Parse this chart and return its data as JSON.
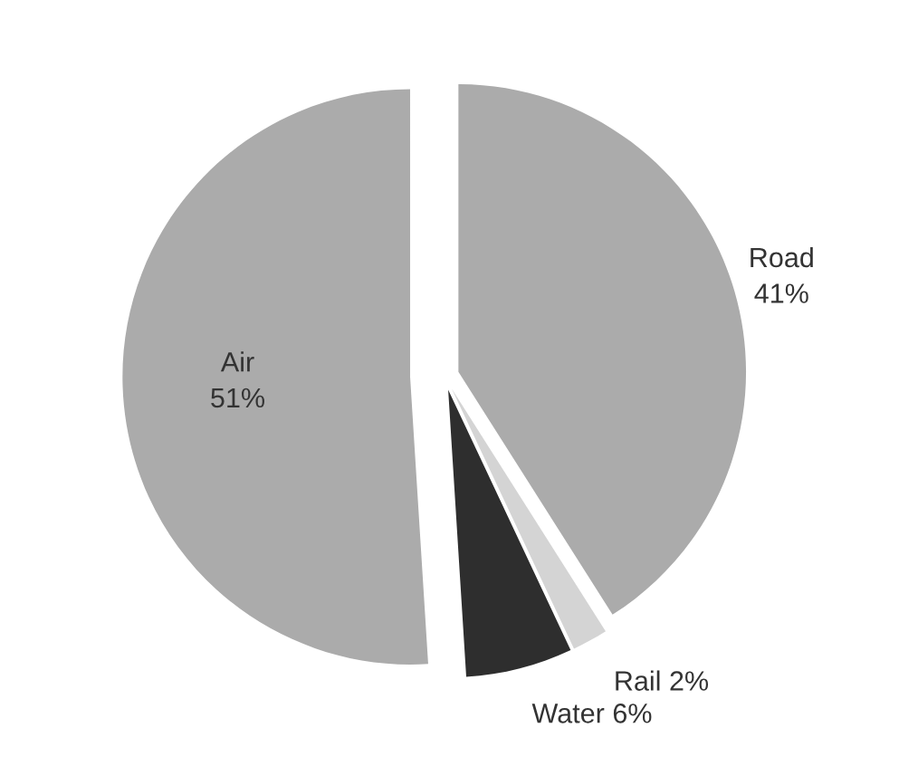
{
  "chart_data": {
    "type": "pie",
    "categories": [
      "Road",
      "Rail",
      "Water",
      "Air"
    ],
    "values": [
      41,
      2,
      6,
      51
    ],
    "value_labels": [
      "41%",
      "2%",
      "6%",
      "51%"
    ],
    "colors": [
      "#ababab",
      "#d4d4d4",
      "#2e2e2e",
      "#ababab"
    ]
  }
}
